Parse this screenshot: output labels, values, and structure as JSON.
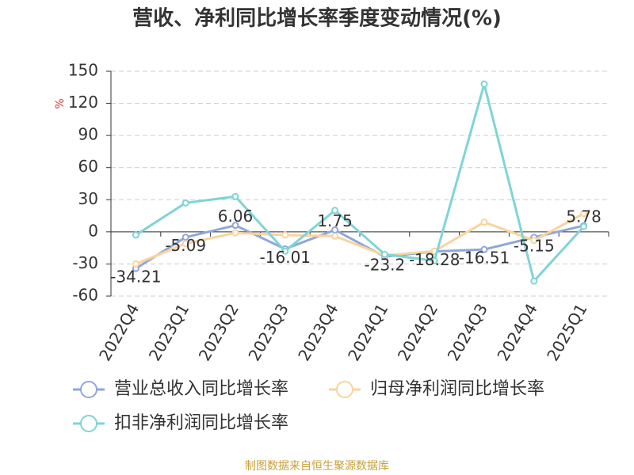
{
  "chart_data": {
    "type": "line",
    "title": "营收、净利同比增长率季度变动情况(%)",
    "y_label": "%",
    "source": "制图数据来自恒生聚源数据库",
    "categories": [
      "2022Q4",
      "2023Q1",
      "2023Q2",
      "2023Q3",
      "2023Q4",
      "2024Q1",
      "2024Q2",
      "2024Q3",
      "2024Q4",
      "2025Q1"
    ],
    "series": [
      {
        "name": "营业总收入同比增长率",
        "color": "#8fa6dc",
        "values": [
          -34.21,
          -5.09,
          6.06,
          -16.01,
          1.75,
          -23.2,
          -18.28,
          -16.51,
          -5.15,
          5.78
        ],
        "labels": true
      },
      {
        "name": "归母净利润同比增长率",
        "color": "#f8d49c",
        "values": [
          -30,
          -11,
          -1,
          -3,
          -4,
          -22,
          -18,
          9,
          -8,
          17
        ]
      },
      {
        "name": "扣非净利润同比增长率",
        "color": "#7fd4d6",
        "values": [
          -3,
          27,
          33,
          -18,
          20,
          -21,
          -27,
          138,
          -46,
          5
        ]
      }
    ],
    "ylim": [
      -60,
      150
    ],
    "yticks": [
      -60,
      -30,
      0,
      30,
      60,
      90,
      120,
      150
    ],
    "grid": true
  }
}
